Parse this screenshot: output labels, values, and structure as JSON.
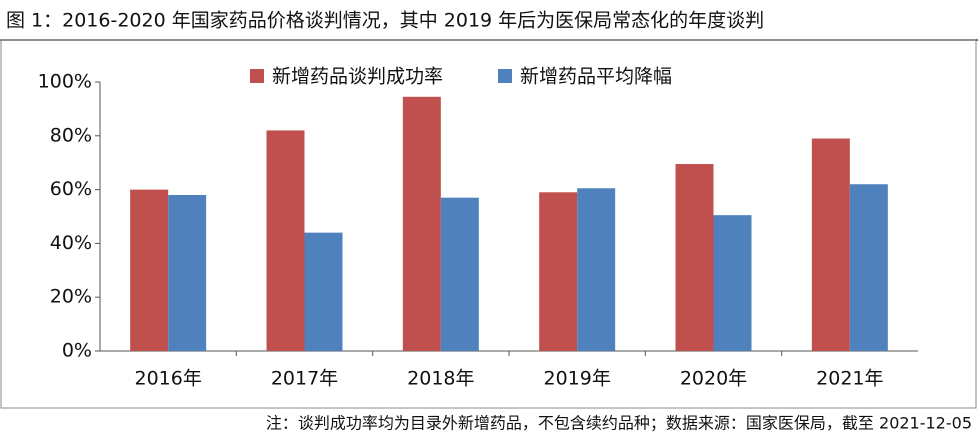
{
  "chart_data": {
    "type": "bar",
    "title": "图 1：2016-2020 年国家药品价格谈判情况，其中 2019 年后为医保局常态化的年度谈判",
    "note": "注：谈判成功率均为目录外新增药品，不包含续约品种；数据来源：国家医保局，截至 2021-12-05",
    "categories": [
      "2016年",
      "2017年",
      "2018年",
      "2019年",
      "2020年",
      "2021年"
    ],
    "series": [
      {
        "name": "新增药品谈判成功率",
        "color": "#c0504d",
        "values": [
          60,
          82,
          94.5,
          59,
          69.5,
          79
        ]
      },
      {
        "name": "新增药品平均降幅",
        "color": "#4f81bd",
        "values": [
          58,
          44,
          57,
          60.5,
          50.5,
          62
        ]
      }
    ],
    "ylim": [
      0,
      100
    ],
    "yticks": [
      {
        "value": 0,
        "label": "0%"
      },
      {
        "value": 20,
        "label": "20%"
      },
      {
        "value": 40,
        "label": "40%"
      },
      {
        "value": 60,
        "label": "60%"
      },
      {
        "value": 80,
        "label": "80%"
      },
      {
        "value": 100,
        "label": "100%"
      }
    ],
    "legend": "top"
  }
}
